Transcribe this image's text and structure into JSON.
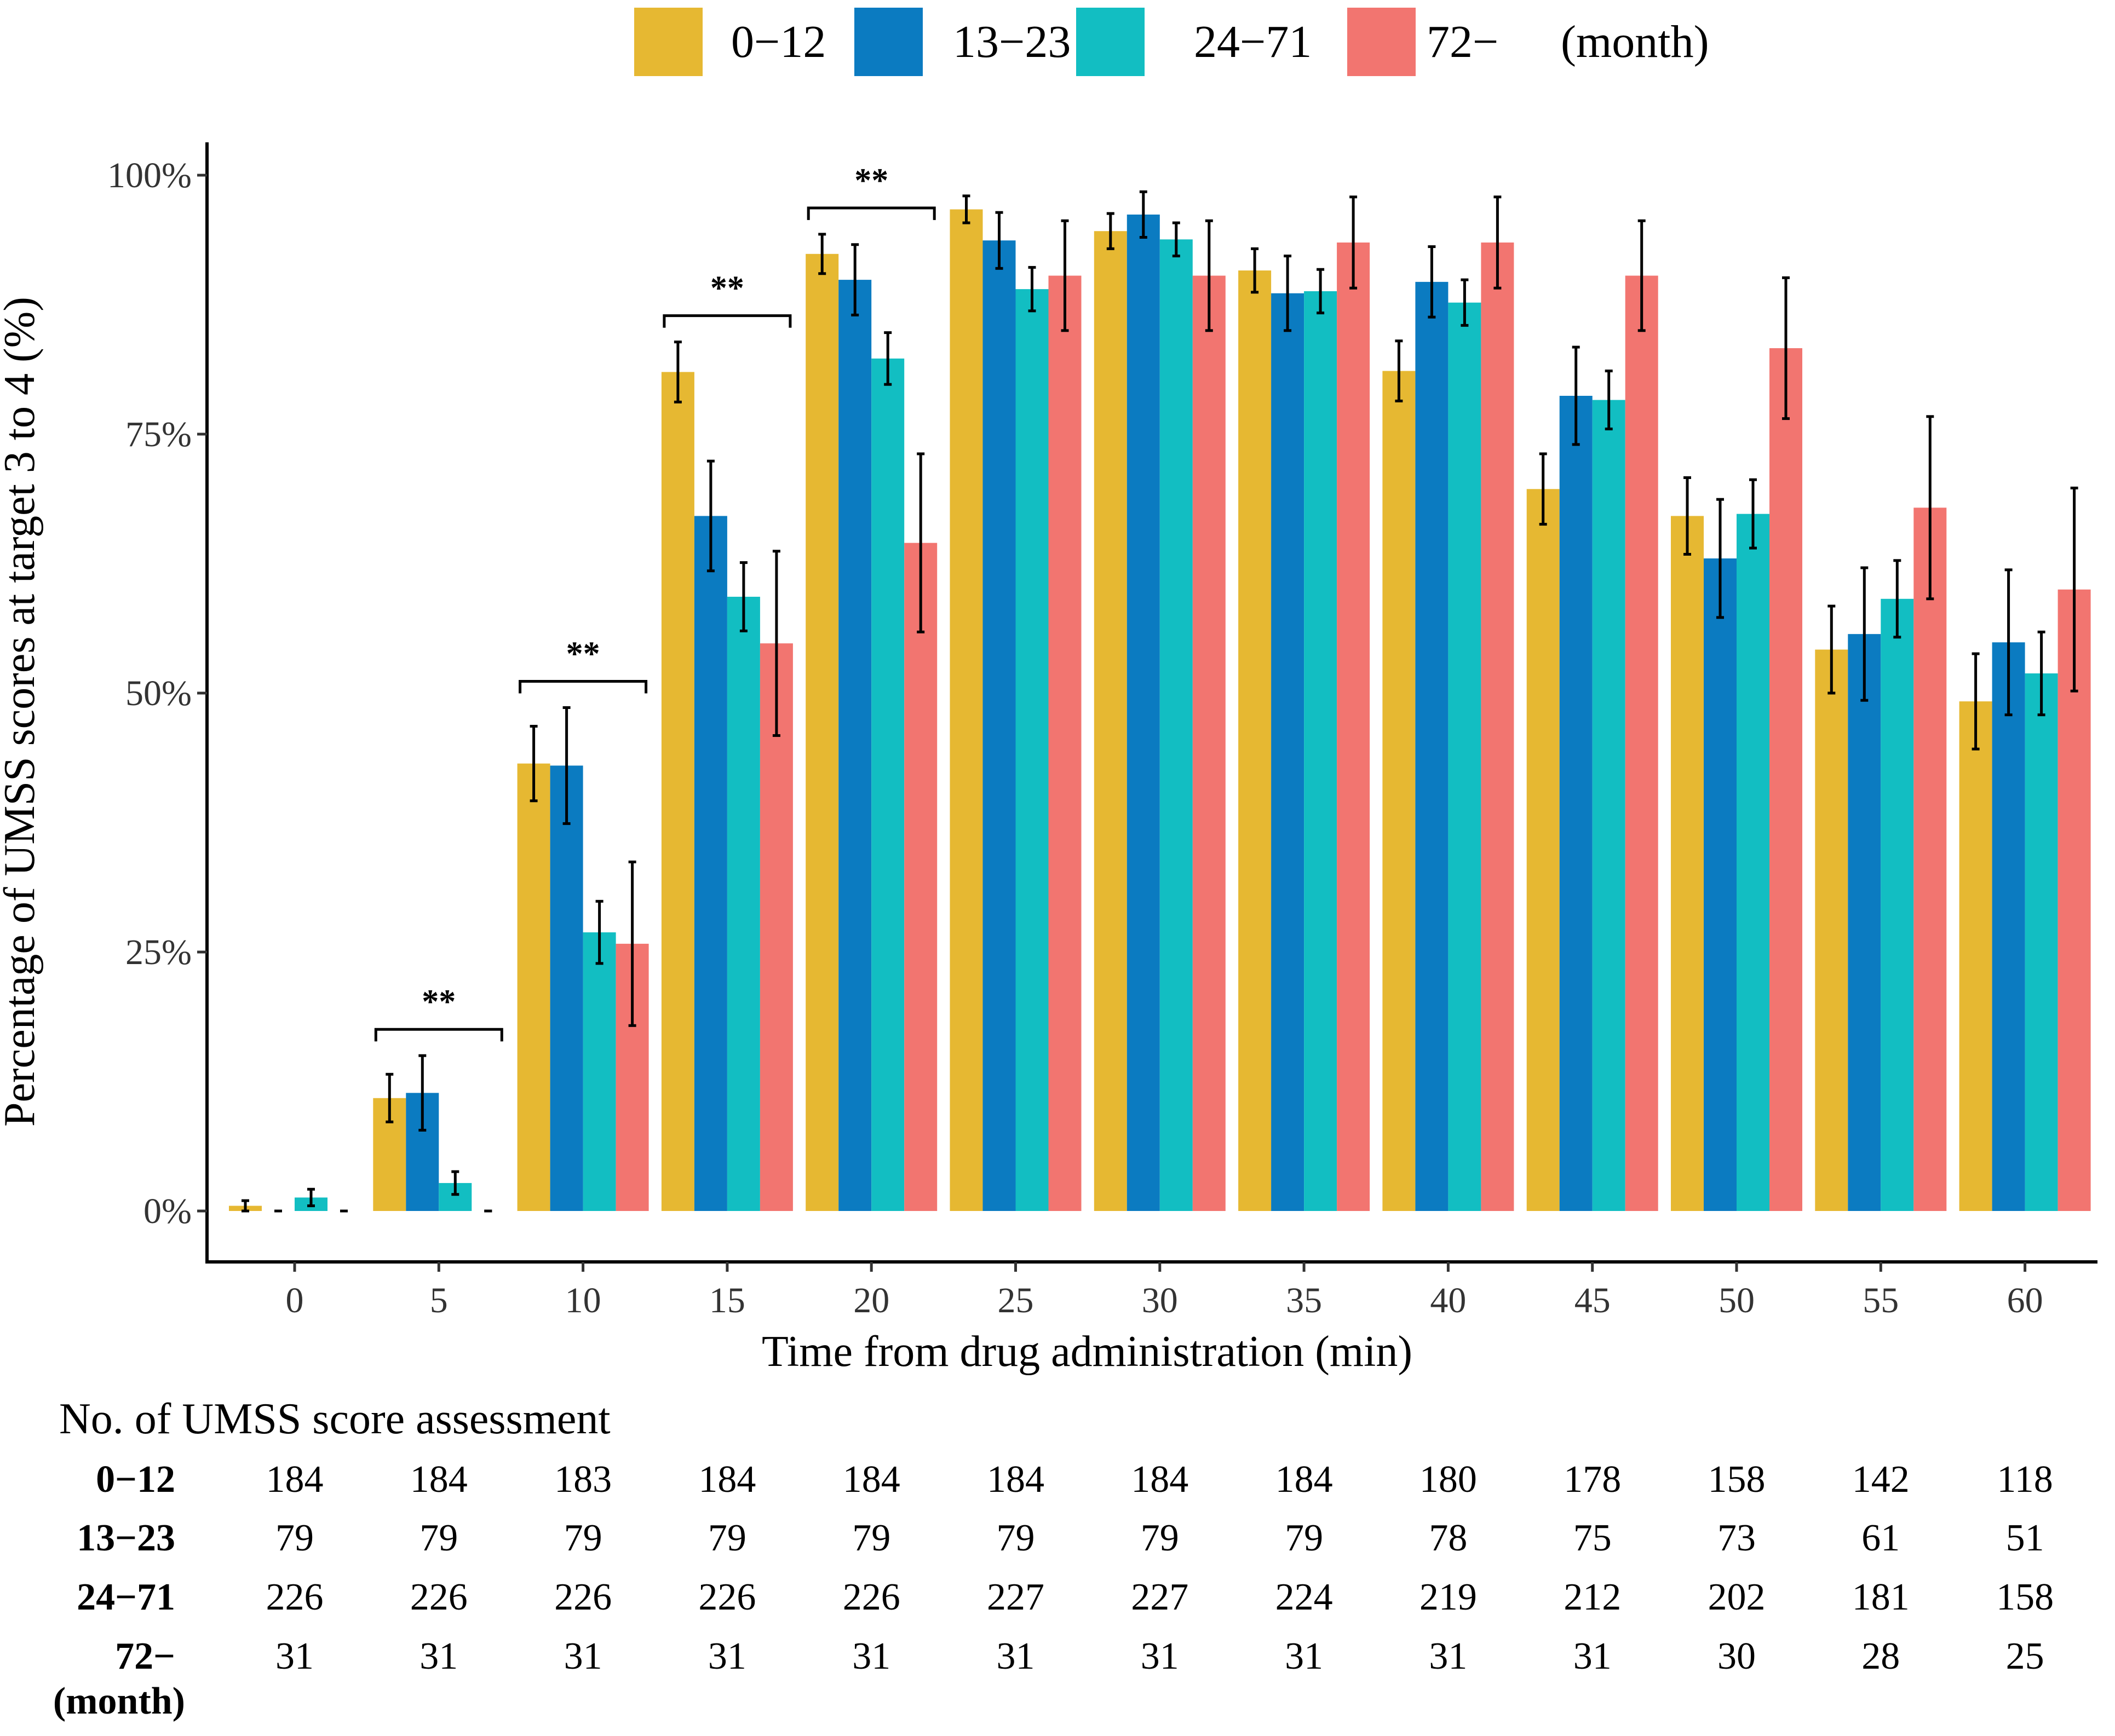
{
  "chart_data": {
    "type": "bar",
    "title": "",
    "xlabel": "Time from drug administration (min)",
    "ylabel": "Percentage of UMSS scores at target 3 to 4 (%)",
    "ylim": [
      0,
      100
    ],
    "yticks": [
      0,
      25,
      50,
      75,
      100
    ],
    "ytick_labels": [
      "0%",
      "25%",
      "50%",
      "75%",
      "100%"
    ],
    "categories": [
      "0",
      "5",
      "10",
      "15",
      "20",
      "25",
      "30",
      "35",
      "40",
      "45",
      "50",
      "55",
      "60"
    ],
    "legend_position": "top",
    "legend_unit": "(month)",
    "series": [
      {
        "name": "0−12",
        "color": "#E6B832",
        "values": [
          0.5,
          10.9,
          43.2,
          81.0,
          92.4,
          96.7,
          94.6,
          90.8,
          81.1,
          69.7,
          67.1,
          54.2,
          49.2
        ],
        "errors": [
          0.5,
          2.3,
          3.6,
          2.9,
          1.9,
          1.3,
          1.7,
          2.1,
          2.9,
          3.4,
          3.7,
          4.2,
          4.6
        ]
      },
      {
        "name": "13−23",
        "color": "#0B7BC1",
        "values": [
          0.0,
          11.4,
          43.0,
          67.1,
          89.9,
          93.7,
          96.2,
          88.6,
          89.7,
          78.7,
          63.0,
          55.7,
          54.9
        ],
        "errors": [
          0.0,
          3.6,
          5.6,
          5.3,
          3.4,
          2.7,
          2.2,
          3.6,
          3.4,
          4.7,
          5.7,
          6.4,
          7.0
        ]
      },
      {
        "name": "24−71",
        "color": "#12BEC2",
        "values": [
          1.3,
          2.7,
          26.9,
          59.3,
          82.3,
          89.0,
          93.8,
          88.8,
          87.7,
          78.3,
          67.3,
          59.1,
          51.9
        ],
        "errors": [
          0.8,
          1.1,
          3.0,
          3.3,
          2.5,
          2.1,
          1.6,
          2.1,
          2.2,
          2.8,
          3.3,
          3.7,
          4.0
        ]
      },
      {
        "name": "72−",
        "color": "#F27570",
        "values": [
          0.0,
          0.0,
          25.8,
          54.8,
          64.5,
          90.3,
          90.3,
          93.5,
          93.5,
          90.3,
          83.3,
          67.9,
          60.0
        ],
        "errors": [
          0.0,
          0.0,
          7.9,
          8.9,
          8.6,
          5.3,
          5.3,
          4.4,
          4.4,
          5.3,
          6.8,
          8.8,
          9.8
        ]
      }
    ],
    "significance": [
      {
        "category": "5",
        "label": "**"
      },
      {
        "category": "10",
        "label": "**"
      },
      {
        "category": "15",
        "label": "**"
      },
      {
        "category": "20",
        "label": "**"
      }
    ]
  },
  "table": {
    "title": "No. of UMSS score assessment",
    "unit_label": "(month)",
    "rows": [
      {
        "label": "0−12",
        "values": [
          "184",
          "184",
          "183",
          "184",
          "184",
          "184",
          "184",
          "184",
          "180",
          "178",
          "158",
          "142",
          "118"
        ]
      },
      {
        "label": "13−23",
        "values": [
          "79",
          "79",
          "79",
          "79",
          "79",
          "79",
          "79",
          "79",
          "78",
          "75",
          "73",
          "61",
          "51"
        ]
      },
      {
        "label": "24−71",
        "values": [
          "226",
          "226",
          "226",
          "226",
          "226",
          "227",
          "227",
          "224",
          "219",
          "212",
          "202",
          "181",
          "158"
        ]
      },
      {
        "label": "72−",
        "values": [
          "31",
          "31",
          "31",
          "31",
          "31",
          "31",
          "31",
          "31",
          "31",
          "31",
          "30",
          "28",
          "25"
        ]
      }
    ]
  }
}
